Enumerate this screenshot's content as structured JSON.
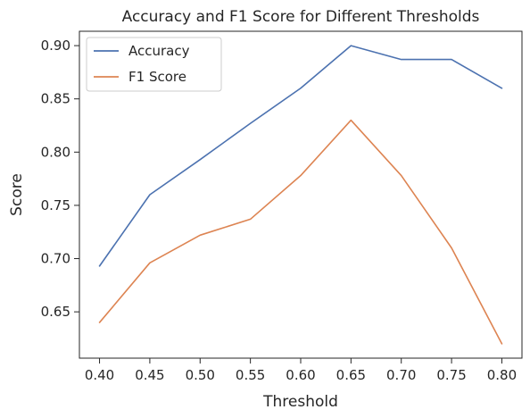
{
  "chart_data": {
    "type": "line",
    "title": "Accuracy and F1 Score for Different Thresholds",
    "xlabel": "Threshold",
    "ylabel": "Score",
    "x": [
      0.4,
      0.45,
      0.5,
      0.55,
      0.6,
      0.65,
      0.7,
      0.75,
      0.8
    ],
    "x_tick_labels": [
      "0.40",
      "0.45",
      "0.50",
      "0.55",
      "0.60",
      "0.65",
      "0.70",
      "0.75",
      "0.80"
    ],
    "y_ticks": [
      0.65,
      0.7,
      0.75,
      0.8,
      0.85,
      0.9
    ],
    "y_tick_labels": [
      "0.65",
      "0.70",
      "0.75",
      "0.80",
      "0.85",
      "0.90"
    ],
    "xlim": [
      0.38,
      0.82
    ],
    "ylim": [
      0.6065,
      0.9135
    ],
    "grid": false,
    "legend_position": "upper-left",
    "series": [
      {
        "name": "Accuracy",
        "color": "#4c72b0",
        "values": [
          0.693,
          0.76,
          0.793,
          0.827,
          0.86,
          0.9,
          0.887,
          0.887,
          0.86
        ]
      },
      {
        "name": "F1 Score",
        "color": "#dd8452",
        "values": [
          0.64,
          0.696,
          0.722,
          0.737,
          0.778,
          0.83,
          0.778,
          0.71,
          0.62
        ]
      }
    ]
  }
}
